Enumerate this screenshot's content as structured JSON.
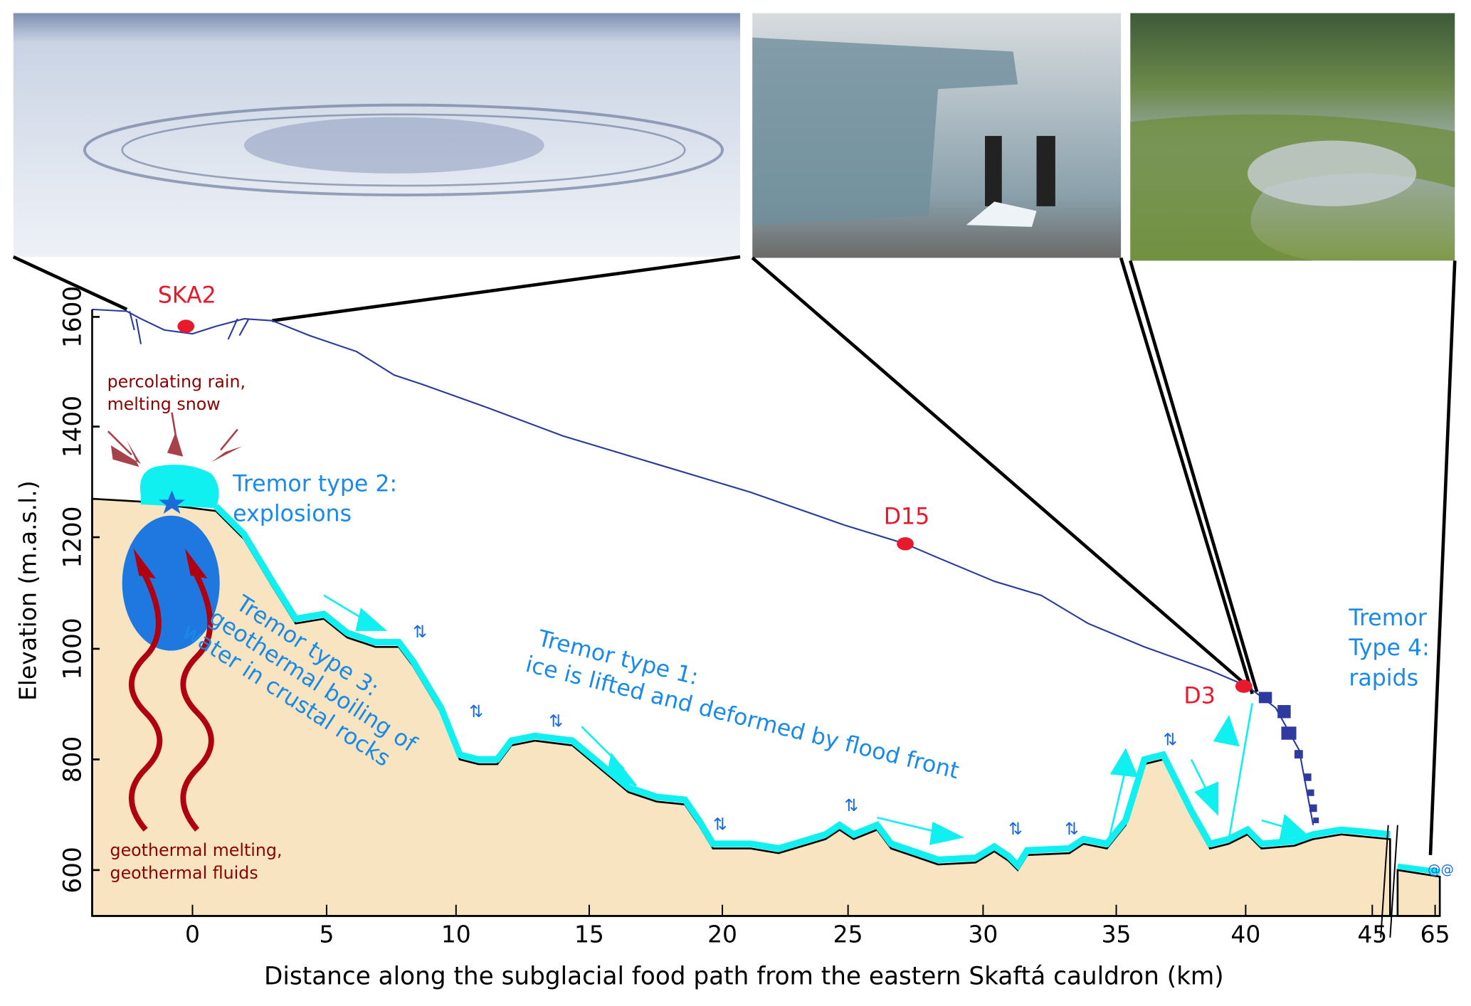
{
  "photos": [
    {
      "name": "ice-cauldron-aerial"
    },
    {
      "name": "ice-blocks-with-people"
    },
    {
      "name": "river-rapids"
    }
  ],
  "stations": {
    "ska2": "SKA2",
    "d15": "D15",
    "d3": "D3"
  },
  "annotations": {
    "rain_line1": "percolating rain,",
    "rain_line2": "melting snow",
    "tremor2_line1": "Tremor type 2:",
    "tremor2_line2": "explosions",
    "tremor3_line1": "Tremor type 3:",
    "tremor3_line2": "geothermal boiling of",
    "tremor3_line3": "water in crustal rocks",
    "tremor1_line1": "Tremor type 1:",
    "tremor1_line2": "ice is lifted and deformed by flood front",
    "tremor4_line1": "Tremor",
    "tremor4_line2": "Type 4:",
    "tremor4_line3": "rapids",
    "geo_line1": "geothermal melting,",
    "geo_line2": "geothermal fluids"
  },
  "axes": {
    "ylabel": "Elevation (m.a.s.l.)",
    "xlabel": "Distance along the subglacial food path from the eastern Skaftá cauldron (km)",
    "yticks": [
      "1600",
      "1400",
      "1200",
      "1000",
      "800",
      "600"
    ],
    "xticks": [
      "0",
      "5",
      "10",
      "15",
      "20",
      "25",
      "30",
      "35",
      "40",
      "45",
      "65"
    ]
  },
  "colors": {
    "bedrock": "#f8e4c0",
    "water": "#10f0f0",
    "ice_surface": "#2a3a9a",
    "station": "#e8192c",
    "tremor_text": "#1a8ae8",
    "rain_text": "#8b0000"
  }
}
